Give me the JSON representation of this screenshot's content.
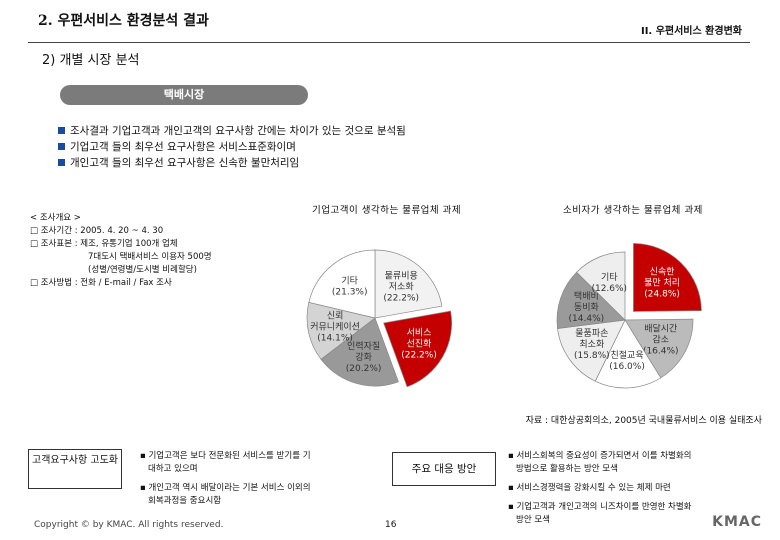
{
  "header": {
    "main_title": "2. 우편서비스 환경분석 결과",
    "section_label": "II. 우편서비스 환경변화",
    "sub_title": "2) 개별 시장 분석",
    "market_tab": "택배시장"
  },
  "bullets": [
    "조사결과 기업고객과 개인고객의 요구사항 간에는 차이가 있는 것으로 분석됨",
    "기업고객 들의 최우선 요구사항은 서비스표준화이며",
    "개인고객 들의 최우선 요구사항은 신속한 불만처리임"
  ],
  "survey": {
    "heading": "< 조사개요 >",
    "lines": [
      "□ 조사기간 :  2005. 4. 20 ~ 4. 30",
      "□ 조사표본 : 제조, 유통기업 100개 업체",
      "7대도시 택배서비스 이용자 500명",
      "(성별/연령별/도시별 비례할당)",
      "□ 조사방법 : 전화 / E-mail / Fax 조사"
    ]
  },
  "source_note": "자료 : 대한상공회의소, 2005년 국내물류서비스 이용 실태조사",
  "bottom": {
    "box_label": "고객요구사항 고도화",
    "left_notes": [
      "▪ 기업고객은 보다 전문화된 서비스를 받기를 기",
      "대하고 있으며",
      "▪ 개인고객 역시 배달이라는 기본 서비스 이외의",
      "회복과정을 중요시함"
    ],
    "response_label": "주요 대응 방안",
    "right_notes": [
      "▪ 서비스회복의 중요성이 증가되면서 이를 차별화의",
      "방법으로 활용하는 방안 모색",
      "▪ 서비스경쟁력을 강화시킬 수 있는 체제 마련",
      "▪ 기업고객과 개인고객의 니즈차이를 반영한 차별화",
      "방안 모색"
    ]
  },
  "footer": {
    "copyright": "Copyright © by KMAC. All rights reserved.",
    "page_number": "16",
    "logo": "KMAC"
  },
  "chart_data": [
    {
      "type": "pie",
      "title": "기업고객이 생각하는 물류업체 과제",
      "slices": [
        {
          "label": [
            "물류비용",
            "저소화"
          ],
          "value": 22.2,
          "value_text": "(22.2%)",
          "color": "#f2f2f2"
        },
        {
          "label": [
            "서비스",
            "선진화"
          ],
          "value": 22.2,
          "value_text": "(22.2%)",
          "color": "#c40000",
          "highlight": true
        },
        {
          "label": [
            "인력자질",
            "강화"
          ],
          "value": 20.2,
          "value_text": "(20.2%)",
          "color": "#999999"
        },
        {
          "label": [
            "신뢰",
            "커뮤니케이션"
          ],
          "value": 14.1,
          "value_text": "(14.1%)",
          "color": "#d4d4d4"
        },
        {
          "label": [
            "기타"
          ],
          "value": 21.3,
          "value_text": "(21.3%)",
          "color": "#ffffff"
        }
      ]
    },
    {
      "type": "pie",
      "title": "소비자가 생각하는 물류업체 과제",
      "slices": [
        {
          "label": [
            "신속한",
            "불만 처리"
          ],
          "value": 24.8,
          "value_text": "(24.8%)",
          "color": "#c40000",
          "highlight": true
        },
        {
          "label": [
            "배달시간",
            "감소"
          ],
          "value": 16.4,
          "value_text": "(16.4%)",
          "color": "#bbbbbb"
        },
        {
          "label": [
            "친절교육"
          ],
          "value": 16.0,
          "value_text": "(16.0%)",
          "color": "#ffffff"
        },
        {
          "label": [
            "물품파손",
            "최소화"
          ],
          "value": 15.8,
          "value_text": "(15.8%)",
          "color": "#eeeeee"
        },
        {
          "label": [
            "택배비",
            "동비화"
          ],
          "value": 14.4,
          "value_text": "(14.4%)",
          "color": "#9a9a9a"
        },
        {
          "label": [
            "기타"
          ],
          "value": 12.6,
          "value_text": "(12.6%)",
          "color": "#eeeeee"
        }
      ]
    }
  ]
}
